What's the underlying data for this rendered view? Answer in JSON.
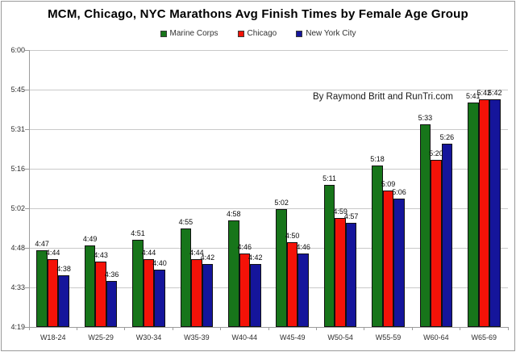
{
  "chart_data": {
    "type": "bar",
    "title": "MCM, Chicago, NYC Marathons Avg Finish Times by Female Age Group",
    "annotation": "By Raymond Britt and RunTri.com",
    "xlabel": "",
    "ylabel": "",
    "grid": true,
    "legend_position": "top-center",
    "categories": [
      "W18-24",
      "W25-29",
      "W30-34",
      "W35-39",
      "W40-44",
      "W45-49",
      "W50-54",
      "W55-59",
      "W60-64",
      "W65-69"
    ],
    "series": [
      {
        "name": "Marine Corps",
        "color": "#17751a",
        "values": [
          "4:47",
          "4:49",
          "4:51",
          "4:55",
          "4:58",
          "5:02",
          "5:11",
          "5:18",
          "5:33",
          "5:41"
        ]
      },
      {
        "name": "Chicago",
        "color": "#f41208",
        "values": [
          "4:44",
          "4:43",
          "4:44",
          "4:44",
          "4:46",
          "4:50",
          "4:59",
          "5:09",
          "5:20",
          "5:42"
        ]
      },
      {
        "name": "New York City",
        "color": "#15159b",
        "values": [
          "4:38",
          "4:36",
          "4:40",
          "4:42",
          "4:42",
          "4:46",
          "4:57",
          "5:06",
          "5:26",
          "5:42"
        ]
      }
    ],
    "y_axis": {
      "tick_labels": [
        "4:19",
        "4:33",
        "4:48",
        "5:02",
        "5:16",
        "5:31",
        "5:45",
        "6:00"
      ],
      "min_minutes": 259.2,
      "max_minutes": 360
    }
  }
}
